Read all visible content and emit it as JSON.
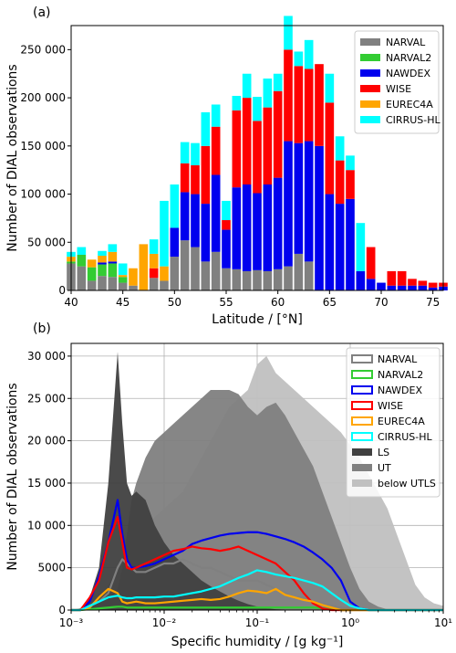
{
  "chart_data": [
    {
      "type": "bar",
      "stacked": true,
      "panel_label": "(a)",
      "xlabel": "Latitude  / [°N]",
      "ylabel": "Number of DIAL observations",
      "xlim": [
        40,
        76
      ],
      "ylim": [
        0,
        275000
      ],
      "xticks": [
        40,
        45,
        50,
        55,
        60,
        65,
        70,
        75
      ],
      "yticks": [
        0,
        50000,
        100000,
        150000,
        200000,
        250000
      ],
      "ytick_labels": [
        "0",
        "50 000",
        "100 000",
        "150 000",
        "200 000",
        "250 000"
      ],
      "bin_width": 0.85,
      "legend_position": "top-right",
      "colors": {
        "NARVAL": "#808080",
        "NARVAL2": "#33cc33",
        "NAWDEX": "#0000ee",
        "WISE": "#ff0000",
        "EUREC4A": "#ffa500",
        "CIRRUS-HL": "#00ffff"
      },
      "x": [
        40,
        41,
        42,
        43,
        44,
        45,
        46,
        47,
        48,
        49,
        50,
        51,
        52,
        53,
        54,
        55,
        56,
        57,
        58,
        59,
        60,
        61,
        62,
        63,
        64,
        65,
        66,
        67,
        68,
        69,
        70,
        71,
        72,
        73,
        74,
        75,
        76
      ],
      "series": [
        {
          "name": "NARVAL",
          "values": [
            28000,
            25000,
            10000,
            15000,
            14000,
            8000,
            5000,
            0,
            13000,
            10000,
            35000,
            52000,
            45000,
            30000,
            40000,
            23000,
            22000,
            20000,
            21000,
            20000,
            22000,
            25000,
            38000,
            30000,
            0,
            0,
            0,
            0,
            0,
            0,
            0,
            0,
            0,
            0,
            0,
            0,
            0
          ]
        },
        {
          "name": "NARVAL2",
          "values": [
            2000,
            12000,
            14000,
            12000,
            14000,
            6000,
            0,
            0,
            0,
            0,
            0,
            0,
            0,
            0,
            0,
            0,
            0,
            0,
            0,
            0,
            0,
            0,
            0,
            0,
            0,
            0,
            0,
            0,
            0,
            0,
            0,
            0,
            0,
            0,
            0,
            0,
            0
          ]
        },
        {
          "name": "NAWDEX",
          "values": [
            0,
            0,
            0,
            2000,
            2000,
            0,
            0,
            0,
            0,
            0,
            30000,
            50000,
            55000,
            60000,
            80000,
            40000,
            85000,
            90000,
            80000,
            90000,
            95000,
            130000,
            115000,
            125000,
            150000,
            100000,
            90000,
            95000,
            20000,
            12000,
            8000,
            5000,
            5000,
            5000,
            5000,
            3000,
            4000
          ]
        },
        {
          "name": "WISE",
          "values": [
            0,
            0,
            0,
            0,
            0,
            0,
            0,
            0,
            10000,
            0,
            0,
            30000,
            30000,
            60000,
            50000,
            10000,
            80000,
            90000,
            75000,
            80000,
            90000,
            95000,
            80000,
            75000,
            85000,
            95000,
            45000,
            30000,
            0,
            33000,
            0,
            15000,
            15000,
            7000,
            5000,
            5000,
            4000
          ]
        },
        {
          "name": "EUREC4A",
          "values": [
            5000,
            0,
            8000,
            7000,
            10000,
            2000,
            18000,
            48000,
            15000,
            15000,
            0,
            0,
            0,
            0,
            0,
            0,
            0,
            0,
            0,
            0,
            0,
            0,
            0,
            0,
            0,
            0,
            0,
            0,
            0,
            0,
            0,
            0,
            0,
            0,
            0,
            0,
            0
          ]
        },
        {
          "name": "CIRRUS-HL",
          "values": [
            5000,
            8000,
            0,
            5000,
            8000,
            12000,
            0,
            0,
            15000,
            68000,
            45000,
            22000,
            23000,
            35000,
            23000,
            20000,
            15000,
            25000,
            25000,
            30000,
            18000,
            35000,
            15000,
            30000,
            0,
            30000,
            25000,
            15000,
            50000,
            0,
            0,
            0,
            0,
            0,
            0,
            0,
            0
          ]
        }
      ]
    },
    {
      "type": "area",
      "panel_label": "(b)",
      "xlabel": "Specific humidity / [g kg⁻¹]",
      "ylabel": "Number of DIAL observations",
      "xscale": "log",
      "xlim": [
        0.001,
        10
      ],
      "ylim": [
        0,
        31500
      ],
      "xticks": [
        0.001,
        0.01,
        0.1,
        1,
        10
      ],
      "xtick_labels": [
        "10⁻³",
        "10⁻²",
        "10⁻¹",
        "10⁰",
        "10¹"
      ],
      "yticks": [
        0,
        5000,
        10000,
        15000,
        20000,
        25000,
        30000
      ],
      "ytick_labels": [
        "0",
        "5000",
        "10 000",
        "15 000",
        "20 000",
        "25 000",
        "30 000"
      ],
      "grid": true,
      "legend_position": "top-right",
      "x_log10": [
        -3.0,
        -2.9,
        -2.8,
        -2.7,
        -2.6,
        -2.5,
        -2.45,
        -2.4,
        -2.35,
        -2.3,
        -2.2,
        -2.1,
        -2.0,
        -1.9,
        -1.8,
        -1.7,
        -1.6,
        -1.5,
        -1.4,
        -1.3,
        -1.2,
        -1.1,
        -1.0,
        -0.9,
        -0.8,
        -0.7,
        -0.6,
        -0.5,
        -0.4,
        -0.3,
        -0.2,
        -0.1,
        0.0,
        0.1,
        0.2,
        0.3,
        0.4,
        0.5,
        0.6,
        0.7,
        0.8,
        0.9,
        1.0
      ],
      "filled_series": [
        {
          "name": "below UTLS",
          "color": "#c0c0c0",
          "values": [
            0,
            0,
            200,
            1000,
            3000,
            5000,
            6000,
            7000,
            8000,
            9000,
            10000,
            11000,
            12000,
            13000,
            14000,
            16000,
            18000,
            20000,
            22000,
            24000,
            25000,
            26000,
            29000,
            30000,
            28000,
            27000,
            26000,
            25000,
            24000,
            23000,
            22000,
            21000,
            19500,
            18000,
            16000,
            14000,
            12000,
            9000,
            6000,
            3000,
            1500,
            800,
            500
          ]
        },
        {
          "name": "UT",
          "color": "#808080",
          "values": [
            0,
            0,
            300,
            800,
            1500,
            2500,
            5000,
            9000,
            13000,
            15000,
            18000,
            20000,
            21000,
            22000,
            23000,
            24000,
            25000,
            26000,
            26000,
            26000,
            25500,
            24000,
            23000,
            24000,
            24500,
            23000,
            21000,
            19000,
            17000,
            14000,
            11000,
            8000,
            5000,
            2500,
            1000,
            400,
            100,
            0,
            0,
            0,
            0,
            0,
            0
          ]
        },
        {
          "name": "LS",
          "color": "#404040",
          "values": [
            0,
            200,
            1500,
            5000,
            15000,
            30500,
            22000,
            15000,
            13500,
            14000,
            13000,
            10000,
            8000,
            6500,
            5500,
            4500,
            3500,
            2800,
            2200,
            1600,
            1100,
            700,
            400,
            200,
            100,
            50,
            0,
            0,
            0,
            0,
            0,
            0,
            0,
            0,
            0,
            0,
            0,
            0,
            0,
            0,
            0,
            0,
            0
          ]
        }
      ],
      "line_series": [
        {
          "name": "NARVAL",
          "color": "#808080",
          "values": [
            0,
            0,
            500,
            1000,
            2000,
            5000,
            6000,
            5500,
            5000,
            4500,
            4500,
            5000,
            5500,
            5500,
            6000,
            5500,
            5000,
            5000,
            4500,
            4000,
            3500,
            3500,
            3500,
            3000,
            2500,
            2000,
            1500,
            1500,
            1000,
            800,
            500,
            300,
            200,
            100,
            0,
            0,
            0,
            0,
            0,
            0,
            0,
            0,
            0
          ]
        },
        {
          "name": "NARVAL2",
          "color": "#33cc33",
          "values": [
            0,
            0,
            100,
            200,
            300,
            400,
            400,
            300,
            300,
            300,
            300,
            300,
            300,
            300,
            300,
            300,
            300,
            300,
            300,
            300,
            300,
            300,
            300,
            300,
            300,
            300,
            300,
            300,
            300,
            200,
            100,
            0,
            0,
            0,
            0,
            0,
            0,
            0,
            0,
            0,
            0,
            0,
            0
          ]
        },
        {
          "name": "NAWDEX",
          "color": "#0000ee",
          "values": [
            0,
            0,
            1000,
            4000,
            8000,
            13000,
            9000,
            6000,
            5000,
            5000,
            5200,
            5500,
            6000,
            6500,
            7000,
            7800,
            8200,
            8500,
            8800,
            9000,
            9100,
            9200,
            9200,
            9000,
            8700,
            8400,
            8000,
            7500,
            6800,
            6000,
            5000,
            3500,
            1000,
            200,
            0,
            0,
            0,
            0,
            0,
            0,
            0,
            0,
            0
          ]
        },
        {
          "name": "WISE",
          "color": "#ff0000",
          "values": [
            0,
            0,
            1500,
            3500,
            8000,
            11000,
            8000,
            5000,
            4800,
            5000,
            5500,
            6000,
            6500,
            7000,
            7200,
            7500,
            7300,
            7200,
            7000,
            7200,
            7500,
            7000,
            6500,
            6000,
            5500,
            4500,
            3500,
            2000,
            800,
            200,
            0,
            0,
            0,
            0,
            0,
            0,
            0,
            0,
            0,
            0,
            0,
            0,
            0
          ]
        },
        {
          "name": "EUREC4A",
          "color": "#ffa500",
          "values": [
            0,
            0,
            300,
            1500,
            2500,
            2000,
            1000,
            800,
            900,
            1000,
            800,
            800,
            900,
            1000,
            1100,
            1200,
            1300,
            1200,
            1300,
            1600,
            2000,
            2300,
            2200,
            2000,
            2500,
            1800,
            1500,
            1200,
            1000,
            600,
            300,
            0,
            0,
            0,
            0,
            0,
            0,
            0,
            0,
            0,
            0,
            0,
            0
          ]
        },
        {
          "name": "CIRRUS-HL",
          "color": "#00ffff",
          "values": [
            0,
            0,
            500,
            1000,
            1500,
            1700,
            1500,
            1400,
            1400,
            1500,
            1500,
            1500,
            1600,
            1600,
            1800,
            2000,
            2200,
            2500,
            2800,
            3300,
            3800,
            4200,
            4700,
            4500,
            4200,
            4000,
            3800,
            3500,
            3200,
            2800,
            2000,
            1200,
            500,
            200,
            0,
            0,
            0,
            0,
            0,
            0,
            0,
            0,
            0
          ]
        }
      ]
    }
  ]
}
